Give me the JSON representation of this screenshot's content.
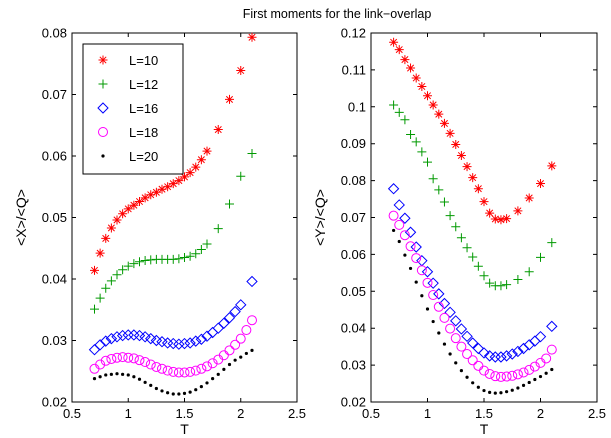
{
  "title": "First moments for the link−overlap",
  "chart_data": [
    {
      "type": "scatter",
      "xlabel": "T",
      "ylabel": "<X>/<Q>",
      "xlim": [
        0.5,
        2.5
      ],
      "ylim": [
        0.02,
        0.08
      ],
      "xticks": [
        "0.5",
        "1",
        "1.5",
        "2",
        "2.5"
      ],
      "yticks": [
        "0.02",
        "0.03",
        "0.04",
        "0.05",
        "0.06",
        "0.07",
        "0.08"
      ],
      "legend": "top-left",
      "series": [
        {
          "name": "L=10",
          "marker": "star",
          "color": "#ff0000",
          "x": [
            0.7,
            0.75,
            0.8,
            0.85,
            0.9,
            0.95,
            1.0,
            1.05,
            1.1,
            1.15,
            1.2,
            1.25,
            1.3,
            1.35,
            1.4,
            1.45,
            1.5,
            1.55,
            1.6,
            1.65,
            1.7,
            1.8,
            1.9,
            2.0,
            2.1
          ],
          "y": [
            0.0414,
            0.0442,
            0.0466,
            0.0483,
            0.0496,
            0.0506,
            0.0514,
            0.052,
            0.0526,
            0.0532,
            0.0537,
            0.0541,
            0.0546,
            0.055,
            0.0555,
            0.056,
            0.0566,
            0.0573,
            0.0582,
            0.0594,
            0.0608,
            0.0643,
            0.0692,
            0.0739,
            0.0793
          ]
        },
        {
          "name": "L=12",
          "marker": "plus",
          "color": "#009900",
          "x": [
            0.7,
            0.75,
            0.8,
            0.85,
            0.9,
            0.95,
            1.0,
            1.05,
            1.1,
            1.15,
            1.2,
            1.25,
            1.3,
            1.35,
            1.4,
            1.45,
            1.5,
            1.55,
            1.6,
            1.65,
            1.7,
            1.8,
            1.9,
            2.0,
            2.1
          ],
          "y": [
            0.0351,
            0.0369,
            0.0385,
            0.0397,
            0.0407,
            0.0415,
            0.0421,
            0.0425,
            0.0428,
            0.043,
            0.0431,
            0.0432,
            0.0432,
            0.0432,
            0.0432,
            0.0433,
            0.0435,
            0.0437,
            0.0441,
            0.0448,
            0.0457,
            0.0482,
            0.0522,
            0.0567,
            0.0604
          ]
        },
        {
          "name": "L=16",
          "marker": "diamond",
          "color": "#0000ff",
          "x": [
            0.7,
            0.75,
            0.8,
            0.85,
            0.9,
            0.95,
            1.0,
            1.05,
            1.1,
            1.15,
            1.2,
            1.25,
            1.3,
            1.35,
            1.4,
            1.45,
            1.5,
            1.55,
            1.6,
            1.65,
            1.7,
            1.75,
            1.8,
            1.85,
            1.9,
            1.95,
            2.0,
            2.1
          ],
          "y": [
            0.0285,
            0.0293,
            0.0299,
            0.0303,
            0.0306,
            0.0308,
            0.0309,
            0.0309,
            0.0308,
            0.0306,
            0.0303,
            0.03,
            0.0298,
            0.0296,
            0.0295,
            0.0294,
            0.0295,
            0.0296,
            0.0299,
            0.0302,
            0.0307,
            0.0313,
            0.032,
            0.0328,
            0.0337,
            0.0347,
            0.0358,
            0.0396
          ]
        },
        {
          "name": "L=18",
          "marker": "circle",
          "color": "#ff00ff",
          "x": [
            0.7,
            0.75,
            0.8,
            0.85,
            0.9,
            0.95,
            1.0,
            1.05,
            1.1,
            1.15,
            1.2,
            1.25,
            1.3,
            1.35,
            1.4,
            1.45,
            1.5,
            1.55,
            1.6,
            1.65,
            1.7,
            1.75,
            1.8,
            1.85,
            1.9,
            1.95,
            2.0,
            2.05,
            2.1
          ],
          "y": [
            0.0254,
            0.0261,
            0.0267,
            0.027,
            0.0272,
            0.0273,
            0.0272,
            0.0271,
            0.0268,
            0.0265,
            0.0261,
            0.0257,
            0.0254,
            0.0251,
            0.0249,
            0.0248,
            0.0248,
            0.0249,
            0.0251,
            0.0254,
            0.0258,
            0.0263,
            0.0269,
            0.0276,
            0.0284,
            0.0293,
            0.0303,
            0.0317,
            0.0333
          ]
        },
        {
          "name": "L=20",
          "marker": "dot",
          "color": "#000000",
          "x": [
            0.7,
            0.75,
            0.8,
            0.85,
            0.9,
            0.95,
            1.0,
            1.05,
            1.1,
            1.15,
            1.2,
            1.25,
            1.3,
            1.35,
            1.4,
            1.45,
            1.5,
            1.55,
            1.6,
            1.65,
            1.7,
            1.75,
            1.8,
            1.85,
            1.9,
            1.95,
            2.0,
            2.05,
            2.1
          ],
          "y": [
            0.0238,
            0.0241,
            0.0244,
            0.0245,
            0.0246,
            0.0245,
            0.0244,
            0.0241,
            0.0237,
            0.0232,
            0.0227,
            0.0222,
            0.0218,
            0.0215,
            0.0213,
            0.0213,
            0.0214,
            0.0216,
            0.022,
            0.0225,
            0.0231,
            0.0238,
            0.0245,
            0.0253,
            0.0261,
            0.0268,
            0.0273,
            0.0279,
            0.0284
          ]
        }
      ]
    },
    {
      "type": "scatter",
      "xlabel": "T",
      "ylabel": "<Y>/<Q>",
      "xlim": [
        0.5,
        2.5
      ],
      "ylim": [
        0.02,
        0.12
      ],
      "xticks": [
        "0.5",
        "1",
        "1.5",
        "2",
        "2.5"
      ],
      "yticks": [
        "0.02",
        "0.03",
        "0.04",
        "0.05",
        "0.06",
        "0.07",
        "0.08",
        "0.09",
        "0.1",
        "0.11",
        "0.12"
      ],
      "series": [
        {
          "name": "L=10",
          "marker": "star",
          "color": "#ff0000",
          "x": [
            0.7,
            0.75,
            0.8,
            0.85,
            0.9,
            0.95,
            1.0,
            1.05,
            1.1,
            1.15,
            1.2,
            1.25,
            1.3,
            1.35,
            1.4,
            1.45,
            1.5,
            1.55,
            1.6,
            1.65,
            1.7,
            1.8,
            1.9,
            2.0,
            2.1
          ],
          "y": [
            0.1175,
            0.1155,
            0.1128,
            0.1105,
            0.1078,
            0.1055,
            0.103,
            0.1005,
            0.098,
            0.0955,
            0.0928,
            0.0898,
            0.0868,
            0.0838,
            0.0808,
            0.0778,
            0.0743,
            0.0712,
            0.0696,
            0.0694,
            0.0697,
            0.0718,
            0.0753,
            0.0792,
            0.084
          ]
        },
        {
          "name": "L=12",
          "marker": "plus",
          "color": "#009900",
          "x": [
            0.7,
            0.75,
            0.8,
            0.85,
            0.9,
            0.95,
            1.0,
            1.05,
            1.1,
            1.15,
            1.2,
            1.25,
            1.3,
            1.35,
            1.4,
            1.45,
            1.5,
            1.55,
            1.6,
            1.65,
            1.7,
            1.8,
            1.9,
            2.0,
            2.1
          ],
          "y": [
            0.1005,
            0.0985,
            0.0965,
            0.0925,
            0.0905,
            0.0878,
            0.085,
            0.0805,
            0.0775,
            0.0742,
            0.0705,
            0.0675,
            0.0645,
            0.0618,
            0.0593,
            0.0568,
            0.0542,
            0.0522,
            0.0515,
            0.0515,
            0.0518,
            0.0532,
            0.0553,
            0.0592,
            0.0632
          ]
        },
        {
          "name": "L=16",
          "marker": "diamond",
          "color": "#0000ff",
          "x": [
            0.7,
            0.75,
            0.8,
            0.85,
            0.9,
            0.95,
            1.0,
            1.05,
            1.1,
            1.15,
            1.2,
            1.25,
            1.3,
            1.35,
            1.4,
            1.45,
            1.5,
            1.55,
            1.6,
            1.65,
            1.7,
            1.75,
            1.8,
            1.85,
            1.9,
            1.95,
            2.0,
            2.1
          ],
          "y": [
            0.0778,
            0.0734,
            0.0698,
            0.066,
            0.062,
            0.0583,
            0.0553,
            0.0522,
            0.0493,
            0.0467,
            0.0443,
            0.042,
            0.0398,
            0.0378,
            0.036,
            0.0345,
            0.0333,
            0.0325,
            0.0322,
            0.0322,
            0.0325,
            0.033,
            0.0337,
            0.0345,
            0.0355,
            0.0365,
            0.0377,
            0.0405
          ]
        },
        {
          "name": "L=18",
          "marker": "circle",
          "color": "#ff00ff",
          "x": [
            0.7,
            0.75,
            0.8,
            0.85,
            0.9,
            0.95,
            1.0,
            1.05,
            1.1,
            1.15,
            1.2,
            1.25,
            1.3,
            1.35,
            1.4,
            1.45,
            1.5,
            1.55,
            1.6,
            1.65,
            1.7,
            1.75,
            1.8,
            1.85,
            1.9,
            1.95,
            2.0,
            2.05,
            2.1
          ],
          "y": [
            0.0705,
            0.068,
            0.0652,
            0.0622,
            0.059,
            0.0557,
            0.0523,
            0.049,
            0.0458,
            0.0428,
            0.0399,
            0.0373,
            0.035,
            0.033,
            0.0313,
            0.0298,
            0.0285,
            0.0276,
            0.027,
            0.0268,
            0.0269,
            0.0271,
            0.0275,
            0.028,
            0.0287,
            0.0296,
            0.0306,
            0.0318,
            0.0342
          ]
        },
        {
          "name": "L=20",
          "marker": "dot",
          "color": "#000000",
          "x": [
            0.7,
            0.75,
            0.8,
            0.85,
            0.9,
            0.95,
            1.0,
            1.05,
            1.1,
            1.15,
            1.2,
            1.25,
            1.3,
            1.35,
            1.4,
            1.45,
            1.5,
            1.55,
            1.6,
            1.65,
            1.7,
            1.75,
            1.8,
            1.85,
            1.9,
            1.95,
            2.0,
            2.05,
            2.1
          ],
          "y": [
            0.0665,
            0.0635,
            0.0598,
            0.0562,
            0.0525,
            0.0488,
            0.0452,
            0.0418,
            0.0387,
            0.0357,
            0.033,
            0.0306,
            0.0285,
            0.0267,
            0.0252,
            0.024,
            0.0231,
            0.0226,
            0.0224,
            0.0225,
            0.0228,
            0.0232,
            0.0238,
            0.0245,
            0.0253,
            0.0261,
            0.0269,
            0.0278,
            0.0288
          ]
        }
      ]
    }
  ]
}
